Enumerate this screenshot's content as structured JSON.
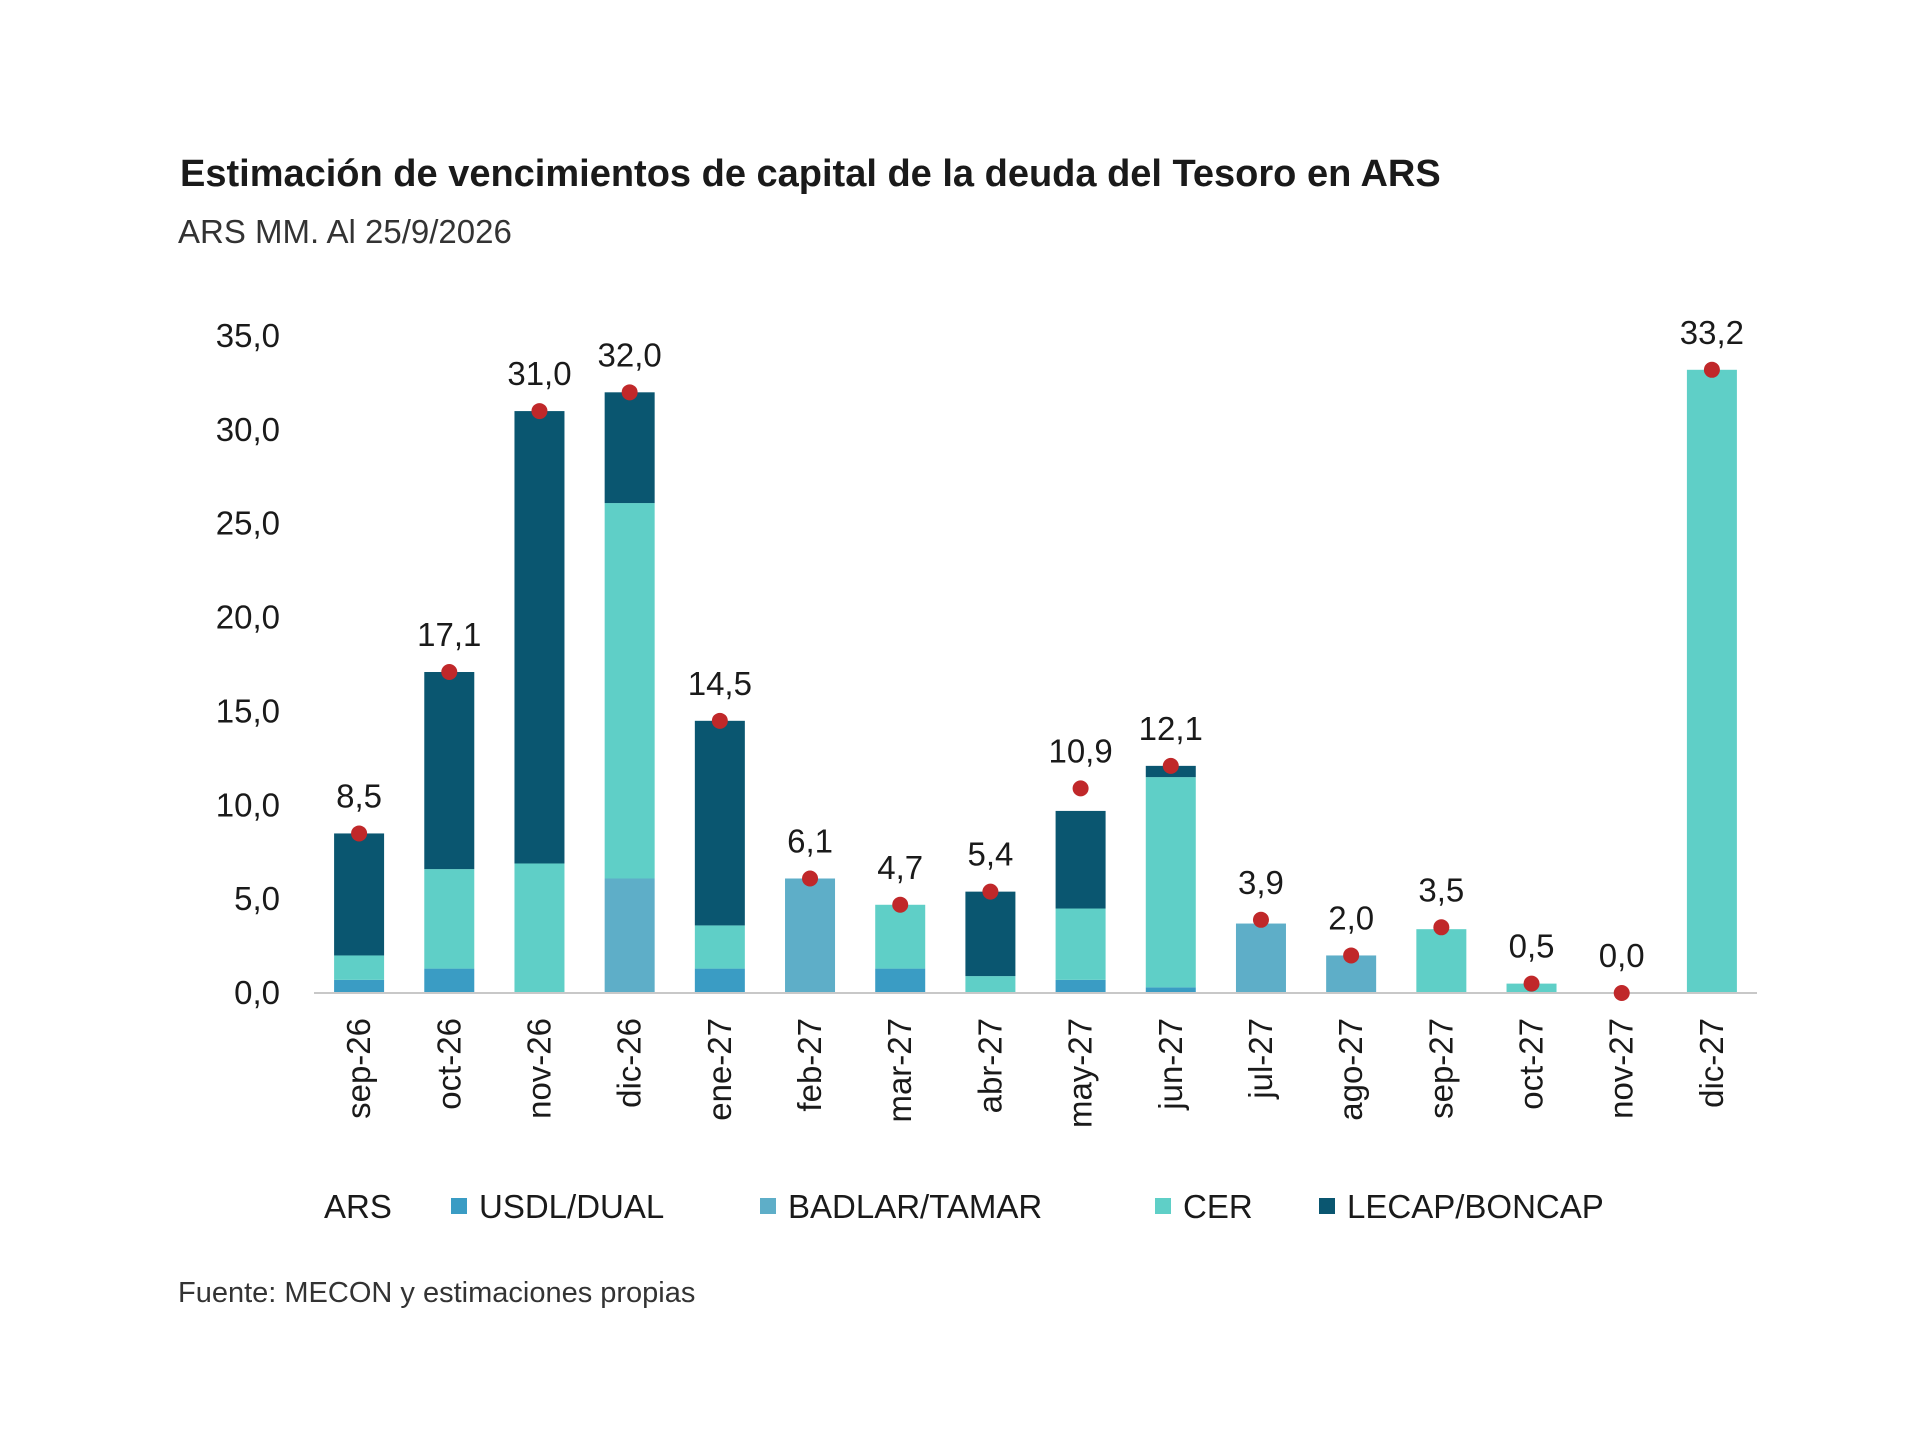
{
  "chart_data": {
    "type": "bar",
    "stacked": true,
    "title": "Estimación de vencimientos de capital de la deuda del Tesoro en ARS",
    "subtitle": "ARS MM. Al 25/9/2026",
    "source": "Fuente: MECON y estimaciones propias",
    "categories": [
      "sep-26",
      "oct-26",
      "nov-26",
      "dic-26",
      "ene-27",
      "feb-27",
      "mar-27",
      "abr-27",
      "may-27",
      "jun-27",
      "jul-27",
      "ago-27",
      "sep-27",
      "oct-27",
      "nov-27",
      "dic-27"
    ],
    "ylim": [
      0,
      35
    ],
    "yticks": [
      {
        "value": 0,
        "label": "0,0"
      },
      {
        "value": 5,
        "label": "5,0"
      },
      {
        "value": 10,
        "label": "10,0"
      },
      {
        "value": 15,
        "label": "15,0"
      },
      {
        "value": 20,
        "label": "20,0"
      },
      {
        "value": 25,
        "label": "25,0"
      },
      {
        "value": 30,
        "label": "30,0"
      },
      {
        "value": 35,
        "label": "35,0"
      }
    ],
    "totals": {
      "name": "ARS",
      "color": "#c0282a",
      "values": [
        8.5,
        17.1,
        31.0,
        32.0,
        14.5,
        6.1,
        4.7,
        5.4,
        10.9,
        12.1,
        3.9,
        2.0,
        3.5,
        0.5,
        0.0,
        33.2
      ],
      "value_labels": [
        "8,5",
        "17,1",
        "31,0",
        "32,0",
        "14,5",
        "6,1",
        "4,7",
        "5,4",
        "10,9",
        "12,1",
        "3,9",
        "2,0",
        "3,5",
        "0,5",
        "0,0",
        "33,2"
      ]
    },
    "series": [
      {
        "name": "USDL/DUAL",
        "color": "#3a9cc4",
        "values": [
          0.7,
          1.3,
          0,
          0,
          1.3,
          0,
          1.3,
          0,
          0.7,
          0.3,
          0,
          0,
          0,
          0,
          0,
          0
        ]
      },
      {
        "name": "BADLAR/TAMAR",
        "color": "#5eaec8",
        "values": [
          0,
          0,
          0,
          6.1,
          0,
          6.1,
          0,
          0,
          0,
          0,
          3.7,
          2.0,
          0,
          0,
          0,
          0
        ]
      },
      {
        "name": "CER",
        "color": "#5fcfc7",
        "values": [
          1.3,
          5.3,
          6.9,
          20.0,
          2.3,
          0,
          3.4,
          0.9,
          3.8,
          11.2,
          0,
          0,
          3.4,
          0.5,
          0,
          33.2
        ]
      },
      {
        "name": "LECAP/BONCAP",
        "color": "#0a5670",
        "values": [
          6.5,
          10.5,
          24.1,
          5.9,
          10.9,
          0,
          0,
          4.5,
          5.2,
          0.6,
          0,
          0,
          0,
          0,
          0,
          0
        ]
      }
    ]
  }
}
